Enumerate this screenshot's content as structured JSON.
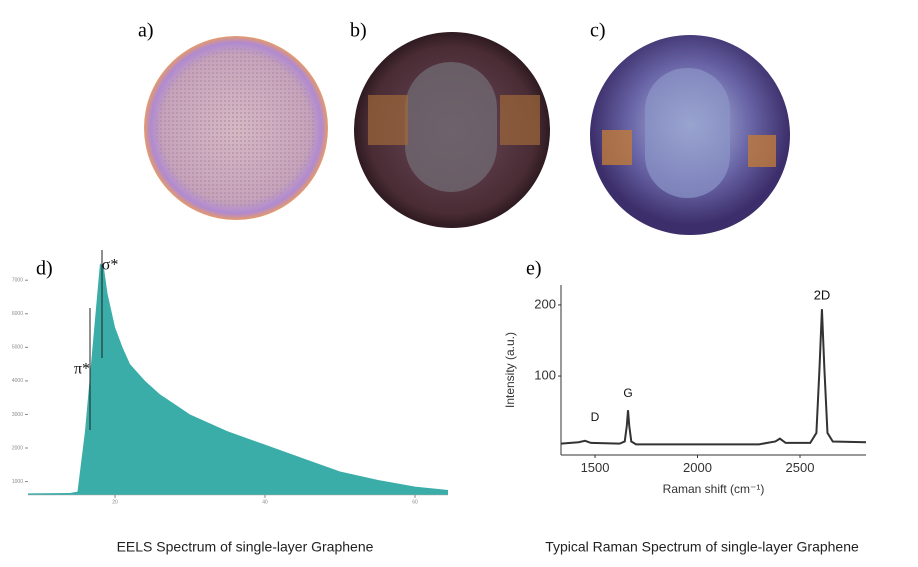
{
  "panels": {
    "labels": [
      "a)",
      "b)",
      "c)",
      "d)",
      "e)"
    ]
  },
  "chart_data": [
    {
      "type": "area",
      "color": "#3aada8",
      "annotations": [
        "π*",
        "σ*"
      ],
      "x": [
        8.4,
        14,
        15,
        16,
        17,
        18,
        18.5,
        19,
        20,
        21,
        22,
        24,
        26,
        28,
        30,
        35,
        40,
        45,
        50,
        55,
        60,
        64.4
      ],
      "values": [
        650,
        660,
        700,
        2500,
        5000,
        7500,
        7400,
        6600,
        5600,
        5000,
        4500,
        4000,
        3600,
        3300,
        3000,
        2500,
        2100,
        1700,
        1300,
        1050,
        850,
        750
      ],
      "xlim": [
        8.4,
        64.4
      ],
      "xticks": [
        20,
        40,
        60
      ],
      "ylim": [
        600,
        7900
      ],
      "yticks": [
        1000,
        2000,
        3000,
        4000,
        5000,
        6000,
        7000
      ],
      "caption": "EELS Spectrum of single-layer Graphene"
    },
    {
      "type": "line",
      "color": "#333333",
      "xlabel": "Raman shift (cm⁻¹)",
      "ylabel": "Intensity (a.u.)",
      "annotations": [
        "D",
        "G",
        "2D"
      ],
      "x": [
        1334,
        1420,
        1451,
        1480,
        1620,
        1645,
        1655,
        1661,
        1667,
        1677,
        1700,
        2300,
        2380,
        2402,
        2430,
        2550,
        2580,
        2595,
        2607,
        2619,
        2634,
        2660,
        2822
      ],
      "values": [
        5,
        7,
        9,
        6,
        5,
        8,
        30,
        52,
        30,
        8,
        4,
        4,
        8,
        12,
        6,
        6,
        20,
        110,
        194,
        110,
        20,
        8,
        7
      ],
      "xlim": [
        1334,
        2822
      ],
      "xticks": [
        1500,
        2000,
        2500
      ],
      "ylim": [
        -11,
        228
      ],
      "yticks": [
        100,
        200
      ],
      "caption": "Typical Raman Spectrum of single-layer Graphene"
    }
  ]
}
